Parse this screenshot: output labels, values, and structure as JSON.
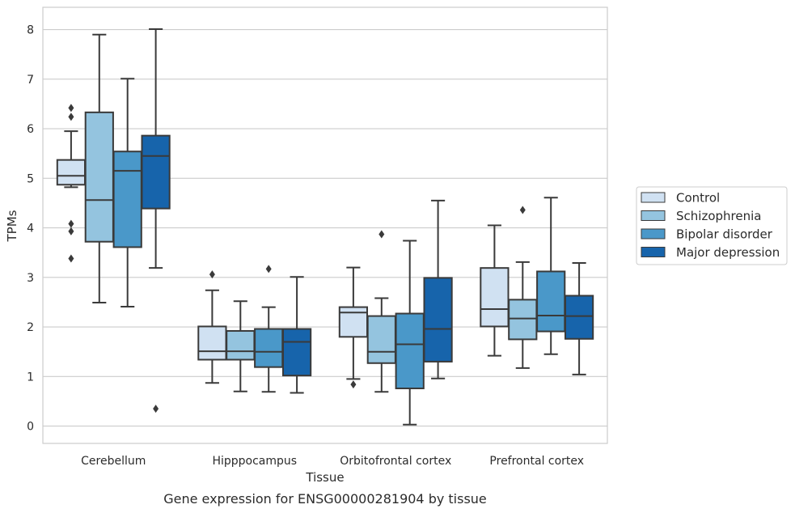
{
  "chart_data": {
    "type": "box",
    "title": "",
    "caption": "Gene expression for ENSG00000281904 by tissue",
    "xlabel": "Tissue",
    "ylabel": "TPMs",
    "ylim": [
      -0.35,
      8.45
    ],
    "yticks": [
      0,
      1,
      2,
      3,
      4,
      5,
      6,
      7,
      8
    ],
    "grid": "horizontal",
    "legend_position": "right",
    "categories": [
      "Cerebellum",
      "Hipppocampus",
      "Orbitofrontal cortex",
      "Prefrontal cortex"
    ],
    "series": [
      {
        "name": "Control",
        "color": "#d0e1f2",
        "boxes": [
          {
            "whisker_low": 4.82,
            "q1": 4.87,
            "median": 5.05,
            "q3": 5.37,
            "whisker_high": 5.95,
            "outliers": [
              6.42,
              6.24,
              4.08,
              3.93,
              3.38
            ]
          },
          {
            "whisker_low": 0.87,
            "q1": 1.34,
            "median": 1.51,
            "q3": 2.01,
            "whisker_high": 2.74,
            "outliers": [
              3.06
            ]
          },
          {
            "whisker_low": 0.95,
            "q1": 1.8,
            "median": 2.29,
            "q3": 2.4,
            "whisker_high": 3.2,
            "outliers": [
              0.84
            ]
          },
          {
            "whisker_low": 1.42,
            "q1": 2.01,
            "median": 2.36,
            "q3": 3.19,
            "whisker_high": 4.05,
            "outliers": []
          }
        ]
      },
      {
        "name": "Schizophrenia",
        "color": "#94c4df",
        "boxes": [
          {
            "whisker_low": 2.49,
            "q1": 3.72,
            "median": 4.56,
            "q3": 6.33,
            "whisker_high": 7.9,
            "outliers": []
          },
          {
            "whisker_low": 0.7,
            "q1": 1.34,
            "median": 1.51,
            "q3": 1.92,
            "whisker_high": 2.52,
            "outliers": []
          },
          {
            "whisker_low": 0.69,
            "q1": 1.27,
            "median": 1.5,
            "q3": 2.22,
            "whisker_high": 2.58,
            "outliers": [
              3.87
            ]
          },
          {
            "whisker_low": 1.17,
            "q1": 1.75,
            "median": 2.17,
            "q3": 2.55,
            "whisker_high": 3.31,
            "outliers": [
              4.36
            ]
          }
        ]
      },
      {
        "name": "Bipolar disorder",
        "color": "#4a98c9",
        "boxes": [
          {
            "whisker_low": 2.41,
            "q1": 3.61,
            "median": 5.15,
            "q3": 5.54,
            "whisker_high": 7.01,
            "outliers": []
          },
          {
            "whisker_low": 0.69,
            "q1": 1.19,
            "median": 1.5,
            "q3": 1.96,
            "whisker_high": 2.4,
            "outliers": [
              3.17
            ]
          },
          {
            "whisker_low": 0.03,
            "q1": 0.76,
            "median": 1.65,
            "q3": 2.27,
            "whisker_high": 3.74,
            "outliers": []
          },
          {
            "whisker_low": 1.45,
            "q1": 1.91,
            "median": 2.23,
            "q3": 3.12,
            "whisker_high": 4.61,
            "outliers": []
          }
        ]
      },
      {
        "name": "Major depression",
        "color": "#1764ab",
        "boxes": [
          {
            "whisker_low": 3.19,
            "q1": 4.39,
            "median": 5.45,
            "q3": 5.86,
            "whisker_high": 8.01,
            "outliers": [
              0.35
            ]
          },
          {
            "whisker_low": 0.67,
            "q1": 1.02,
            "median": 1.7,
            "q3": 1.96,
            "whisker_high": 3.01,
            "outliers": []
          },
          {
            "whisker_low": 0.96,
            "q1": 1.3,
            "median": 1.96,
            "q3": 2.99,
            "whisker_high": 4.55,
            "outliers": []
          },
          {
            "whisker_low": 1.04,
            "q1": 1.76,
            "median": 2.22,
            "q3": 2.63,
            "whisker_high": 3.29,
            "outliers": []
          }
        ]
      }
    ]
  }
}
